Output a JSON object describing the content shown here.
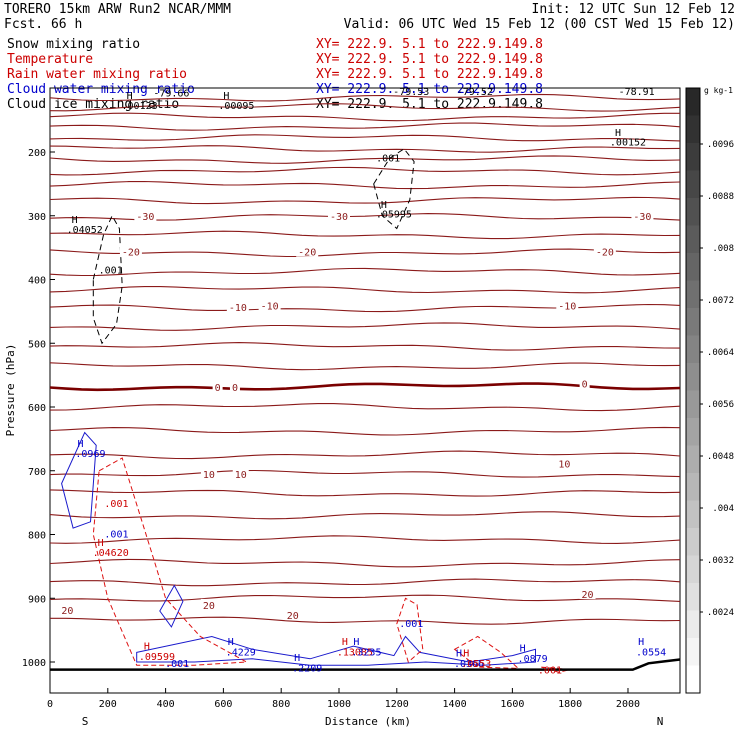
{
  "header": {
    "model": "TORERO  15km ARW   Run2    NCAR/MMM",
    "init": "Init: 12 UTC Sun 12 Feb 12",
    "fcst": "Fcst.  66 h",
    "valid": "Valid: 06 UTC Wed 15 Feb 12 (00 CST Wed 15 Feb 12)"
  },
  "legend": [
    {
      "field": "Snow mixing ratio",
      "xy": "XY= 222.9.  5.1 to 222.9.149.8",
      "color": "#000000",
      "xy_color": "#cc0000"
    },
    {
      "field": "Temperature",
      "xy": "XY= 222.9.  5.1 to 222.9.149.8",
      "color": "#cc0000",
      "xy_color": "#cc0000"
    },
    {
      "field": "Rain water mixing ratio",
      "xy": "XY= 222.9.  5.1 to 222.9.149.8",
      "color": "#cc0000",
      "xy_color": "#cc0000"
    },
    {
      "field": "Cloud water mixing ratio",
      "xy": "XY= 222.9.  5.1 to 222.9.149.8",
      "color": "#0000cc",
      "xy_color": "#0000cc"
    },
    {
      "field": "Cloud ice mixing ratio",
      "xy": "XY= 222.9.  5.1 to 222.9.149.8",
      "color": "#000000",
      "xy_color": "#000000"
    }
  ],
  "chart_data": {
    "type": "cross-section",
    "xlabel": "Distance (km)",
    "ylabel": "Pressure (hPa)",
    "xlim": [
      0,
      2180
    ],
    "ylim": [
      1050,
      100
    ],
    "x_ticks": [
      0,
      200,
      400,
      600,
      800,
      1000,
      1200,
      1400,
      1600,
      1800,
      2000
    ],
    "y_ticks": [
      200,
      300,
      400,
      500,
      600,
      700,
      800,
      900,
      1000
    ],
    "x_ends": {
      "left": "S",
      "right": "N"
    },
    "temperature_isotherms": [
      {
        "level_hpa": 115
      },
      {
        "level_hpa": 130
      },
      {
        "level_hpa": 145
      },
      {
        "level_hpa": 160
      },
      {
        "level_hpa": 178
      },
      {
        "level_hpa": 195
      },
      {
        "level_hpa": 212
      },
      {
        "level_hpa": 230
      },
      {
        "level_hpa": 252
      },
      {
        "level_hpa": 276
      },
      {
        "level_hpa": 302,
        "label": "-30"
      },
      {
        "level_hpa": 330
      },
      {
        "level_hpa": 358,
        "label": "-20"
      },
      {
        "level_hpa": 388
      },
      {
        "level_hpa": 416
      },
      {
        "level_hpa": 445,
        "label": "-10"
      },
      {
        "level_hpa": 474
      },
      {
        "level_hpa": 505
      },
      {
        "level_hpa": 536
      },
      {
        "level_hpa": 568,
        "label": "0",
        "bold": true
      },
      {
        "level_hpa": 600
      },
      {
        "level_hpa": 638
      },
      {
        "level_hpa": 675
      },
      {
        "level_hpa": 705,
        "label": "10"
      },
      {
        "level_hpa": 735
      },
      {
        "level_hpa": 770
      },
      {
        "level_hpa": 808
      },
      {
        "level_hpa": 845
      },
      {
        "level_hpa": 875
      },
      {
        "level_hpa": 900,
        "label": "20"
      },
      {
        "level_hpa": 935
      }
    ],
    "temperature_labels": [
      {
        "x": 1000,
        "p": 302,
        "text": "-30"
      },
      {
        "x": 2050,
        "p": 302,
        "text": "-30"
      },
      {
        "x": 330,
        "p": 302,
        "text": "-30"
      },
      {
        "x": 280,
        "p": 358,
        "text": "-20"
      },
      {
        "x": 890,
        "p": 358,
        "text": "-20"
      },
      {
        "x": 1920,
        "p": 358,
        "text": "-20"
      },
      {
        "x": 650,
        "p": 445,
        "text": "-10"
      },
      {
        "x": 760,
        "p": 442,
        "text": "-10"
      },
      {
        "x": 1790,
        "p": 442,
        "text": "-10"
      },
      {
        "x": 580,
        "p": 570,
        "text": "0"
      },
      {
        "x": 640,
        "p": 570,
        "text": "0"
      },
      {
        "x": 1850,
        "p": 565,
        "text": "0"
      },
      {
        "x": 550,
        "p": 707,
        "text": "10"
      },
      {
        "x": 660,
        "p": 707,
        "text": "10"
      },
      {
        "x": 1780,
        "p": 690,
        "text": "10"
      },
      {
        "x": 550,
        "p": 912,
        "text": "20"
      },
      {
        "x": 840,
        "p": 928,
        "text": "20"
      },
      {
        "x": 1860,
        "p": 895,
        "text": "20"
      },
      {
        "x": 60,
        "p": 920,
        "text": "20"
      }
    ],
    "top_labels": [
      {
        "x": 420,
        "p": 108,
        "text": "-79.66"
      },
      {
        "x": 1250,
        "p": 106,
        "text": "-79.53"
      },
      {
        "x": 1470,
        "p": 106,
        "text": "-79.52"
      },
      {
        "x": 2030,
        "p": 106,
        "text": "-78.91"
      }
    ],
    "extrema_labels": [
      {
        "x": 310,
        "p": 128,
        "text": ".00123",
        "hp": 112,
        "color": "#000000"
      },
      {
        "x": 645,
        "p": 128,
        "text": ".00095",
        "hp": 112,
        "color": "#000000"
      },
      {
        "x": 2000,
        "p": 185,
        "text": ".00152",
        "hp": 170,
        "color": "#000000"
      },
      {
        "x": 1170,
        "p": 210,
        "text": ".001",
        "color": "#000000"
      },
      {
        "x": 1190,
        "p": 298,
        "text": ".05995",
        "hp": 283,
        "color": "#000000"
      },
      {
        "x": 120,
        "p": 322,
        "text": ".04052",
        "hp": 307,
        "color": "#000000"
      },
      {
        "x": 210,
        "p": 386,
        "text": ".001",
        "color": "#000000"
      },
      {
        "x": 140,
        "p": 674,
        "text": ".0969",
        "hp": 658,
        "color": "#0000cc"
      },
      {
        "x": 230,
        "p": 752,
        "text": ".001",
        "color": "#cc0000"
      },
      {
        "x": 230,
        "p": 800,
        "text": ".001",
        "color": "#0000cc"
      },
      {
        "x": 210,
        "p": 829,
        "text": ".04620",
        "hp": 813,
        "color": "#cc0000"
      },
      {
        "x": 1250,
        "p": 940,
        "text": ".001",
        "color": "#0000cc"
      },
      {
        "x": 370,
        "p": 992,
        "text": ".09599",
        "hp": 976,
        "color": "#cc0000"
      },
      {
        "x": 440,
        "p": 1003,
        "text": ".001",
        "color": "#0000cc"
      },
      {
        "x": 660,
        "p": 985,
        "text": ".4229",
        "hp": 969,
        "color": "#0000cc"
      },
      {
        "x": 890,
        "p": 1010,
        "text": ".2209",
        "hp": 994,
        "color": "#0000cc"
      },
      {
        "x": 1055,
        "p": 985,
        "text": ".13085",
        "hp": 969,
        "color": "#cc0000"
      },
      {
        "x": 1095,
        "p": 985,
        "text": ".3235",
        "hp": 969,
        "color": "#0000cc"
      },
      {
        "x": 1450,
        "p": 1003,
        "text": ".0366",
        "hp": 987,
        "color": "#0000cc"
      },
      {
        "x": 1475,
        "p": 1003,
        "text": ".0553",
        "hp": 987,
        "color": "#cc0000"
      },
      {
        "x": 1670,
        "p": 995,
        "text": ".0879",
        "hp": 979,
        "color": "#0000cc"
      },
      {
        "x": 1730,
        "p": 1013,
        "text": ".001",
        "color": "#cc0000"
      },
      {
        "x": 2080,
        "p": 985,
        "text": ".0554",
        "hp": 969,
        "color": "#0000cc"
      }
    ],
    "colorbar": {
      "unit": "g kg-1",
      "ticks": [
        ".0096",
        ".0088",
        ".008",
        ".0072",
        ".0064",
        ".0056",
        ".0048",
        ".004",
        ".0032",
        ".0024"
      ]
    }
  }
}
